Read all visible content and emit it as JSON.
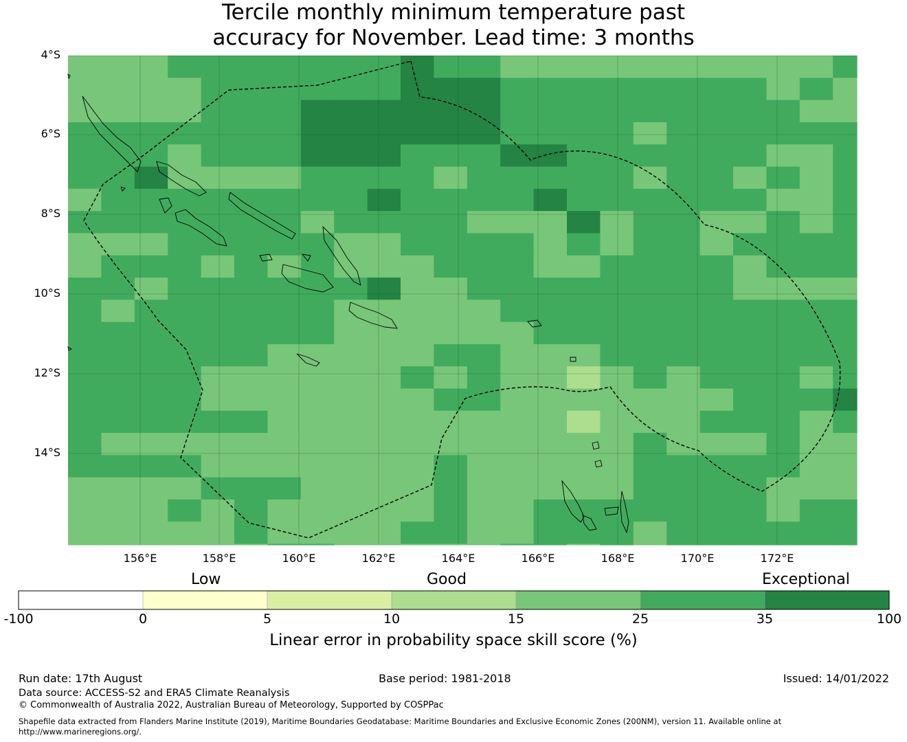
{
  "title": {
    "line1": "Tercile monthly minimum temperature past",
    "line2": "accuracy for November. Lead time: 3 months"
  },
  "map": {
    "lat_labels": [
      "4°S",
      "6°S",
      "8°S",
      "10°S",
      "12°S",
      "14°S"
    ],
    "lon_labels": [
      "156°E",
      "158°E",
      "160°E",
      "162°E",
      "164°E",
      "166°E",
      "168°E",
      "170°E",
      "172°E"
    ],
    "colors": {
      "c15_25": "#78c679",
      "c25_35": "#41ab5d",
      "c35_100": "#238443",
      "c10_15": "#addd8e",
      "coast": "#000000",
      "boundary": "#000000"
    },
    "boundary_style": "dashed"
  },
  "colorbar": {
    "categories": [
      "Low",
      "Good",
      "Exceptional"
    ],
    "ticks": [
      "-100",
      "0",
      "5",
      "10",
      "15",
      "25",
      "35",
      "100"
    ],
    "colors": [
      "#ffffff",
      "#ffffcc",
      "#d9f0a3",
      "#addd8e",
      "#78c679",
      "#41ab5d",
      "#238443"
    ],
    "label": "Linear error in probability space skill score (%)"
  },
  "footer": {
    "run_date": "Run date: 17th August",
    "base_period": "Base period: 1981-2018",
    "issued": "Issued: 14/01/2022",
    "data_source": "Data source: ACCESS-S2 and ERA5 Climate Reanalysis",
    "copyright": "© Commonwealth of Australia 2022, Australian Bureau of Meteorology, Supported by COSPPac",
    "shapefile": "Shapefile data extracted from Flanders Marine Institute (2019), Maritime Boundaries Geodatabase: Maritime Boundaries and Exclusive Economic Zones (200NM), version 11. Available online at http://www.marineregions.org/."
  }
}
